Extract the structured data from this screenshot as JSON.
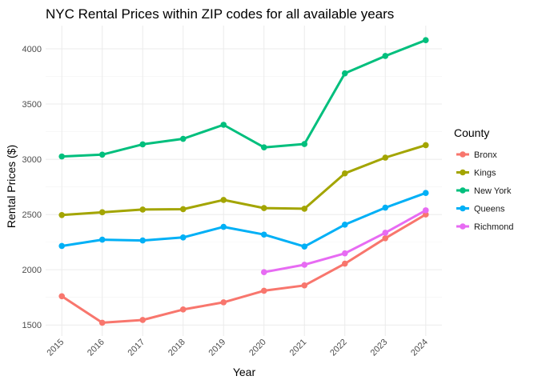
{
  "chart_data": {
    "type": "line",
    "title": "NYC Rental Prices within ZIP codes for all available years",
    "xlabel": "Year",
    "ylabel": "Rental Prices ($)",
    "x": [
      2015,
      2016,
      2017,
      2018,
      2019,
      2020,
      2021,
      2022,
      2023,
      2024
    ],
    "x_tick_labels": [
      "2015",
      "2016",
      "2017",
      "2018",
      "2019",
      "2020",
      "2021",
      "2022",
      "2023",
      "2024"
    ],
    "y_ticks": [
      1500,
      2000,
      2500,
      3000,
      3500,
      4000
    ],
    "y_tick_labels": [
      "1500",
      "2000",
      "2500",
      "3000",
      "3500",
      "4000"
    ],
    "xlim": [
      2014.6,
      2024.4
    ],
    "ylim": [
      1400,
      4210
    ],
    "grid": true,
    "legend": {
      "title": "County",
      "position": "right"
    },
    "series": [
      {
        "name": "Bronx",
        "color": "#F8766D",
        "values": [
          1760,
          1520,
          1545,
          1640,
          1705,
          1810,
          1858,
          2055,
          2285,
          2500
        ]
      },
      {
        "name": "Kings",
        "color": "#A3A500",
        "values": [
          2495,
          2520,
          2545,
          2548,
          2632,
          2558,
          2552,
          2872,
          3015,
          3128
        ]
      },
      {
        "name": "New York",
        "color": "#00BF7D",
        "values": [
          3025,
          3042,
          3135,
          3185,
          3312,
          3108,
          3138,
          3778,
          3935,
          4078
        ]
      },
      {
        "name": "Queens",
        "color": "#00B0F6",
        "values": [
          2215,
          2272,
          2265,
          2292,
          2388,
          2318,
          2210,
          2408,
          2562,
          2695
        ]
      },
      {
        "name": "Richmond",
        "color": "#E76BF3",
        "values": [
          null,
          null,
          null,
          null,
          null,
          1978,
          2045,
          2148,
          2335,
          2538
        ]
      }
    ]
  }
}
